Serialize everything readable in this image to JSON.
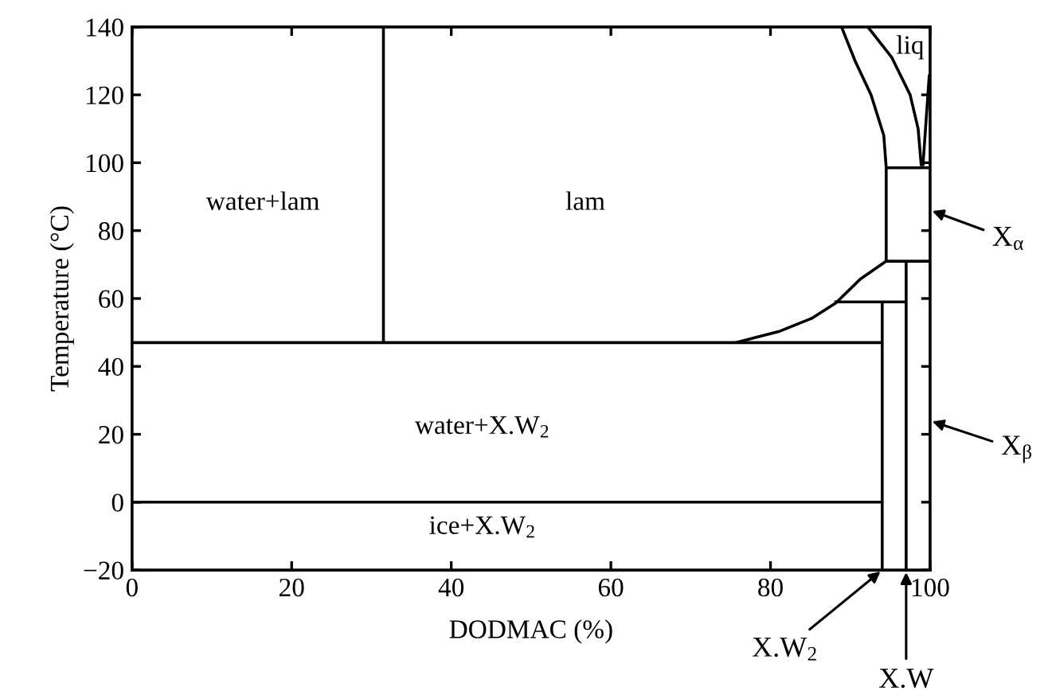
{
  "chart_data": {
    "type": "line",
    "xlabel": "DODMAC (%)",
    "ylabel": "Temperature (°C)",
    "xlim": [
      0,
      100
    ],
    "ylim": [
      -20,
      140
    ],
    "xticks": [
      0,
      20,
      40,
      60,
      80,
      100
    ],
    "yticks": [
      {
        "value": -20,
        "label": "−20"
      },
      0,
      20,
      40,
      60,
      80,
      100,
      120,
      140
    ],
    "grid": false,
    "marker": "none",
    "line_style": "solid",
    "series": [
      {
        "color": "#000000",
        "x": [
          0,
          94
        ],
        "values": [
          47,
          47
        ]
      },
      {
        "color": "#000000",
        "x": [
          0,
          94
        ],
        "values": [
          0,
          0
        ]
      },
      {
        "color": "#000000",
        "x": [
          31.5,
          31.5
        ],
        "values": [
          47,
          140
        ]
      },
      {
        "color": "#000000",
        "x": [
          94,
          94
        ],
        "values": [
          -20,
          59
        ]
      },
      {
        "color": "#000000",
        "x": [
          97,
          97
        ],
        "values": [
          -20,
          71
        ]
      },
      {
        "color": "#000000",
        "x": [
          88,
          97
        ],
        "values": [
          59,
          59
        ]
      },
      {
        "color": "#000000",
        "x": [
          94.5,
          100
        ],
        "values": [
          71,
          71
        ]
      },
      {
        "color": "#000000",
        "x": [
          94.5,
          100
        ],
        "values": [
          98.5,
          98.5
        ]
      },
      {
        "color": "#000000",
        "x": [
          75.6,
          81.2,
          85.2,
          88.2,
          91.2,
          94.5
        ],
        "values": [
          47,
          50.4,
          54.2,
          58.7,
          65.6,
          71
        ]
      },
      {
        "color": "#000000",
        "x": [
          94.5,
          94.5,
          94.2,
          92.6,
          90.6,
          88.9
        ],
        "values": [
          71,
          98.5,
          108,
          120,
          130,
          140
        ]
      },
      {
        "color": "#000000",
        "x": [
          92.2,
          95.2,
          97.5,
          98.5,
          98.9
        ],
        "values": [
          140,
          131,
          120,
          110,
          99
        ]
      },
      {
        "color": "#000000",
        "x": [
          99.9,
          99.1
        ],
        "values": [
          126,
          99
        ]
      }
    ],
    "annotations": [
      "water+lam",
      "lam",
      "water+X.W$_{2}$",
      "ice+X.W$_{2}$",
      "liq",
      "X$_{α}$",
      "X$_{β}$",
      {
        "text": "X.W$_{2}$",
        "x": 94,
        "y": -20
      },
      {
        "text": "X.W",
        "x": 97,
        "y": -20
      }
    ]
  }
}
